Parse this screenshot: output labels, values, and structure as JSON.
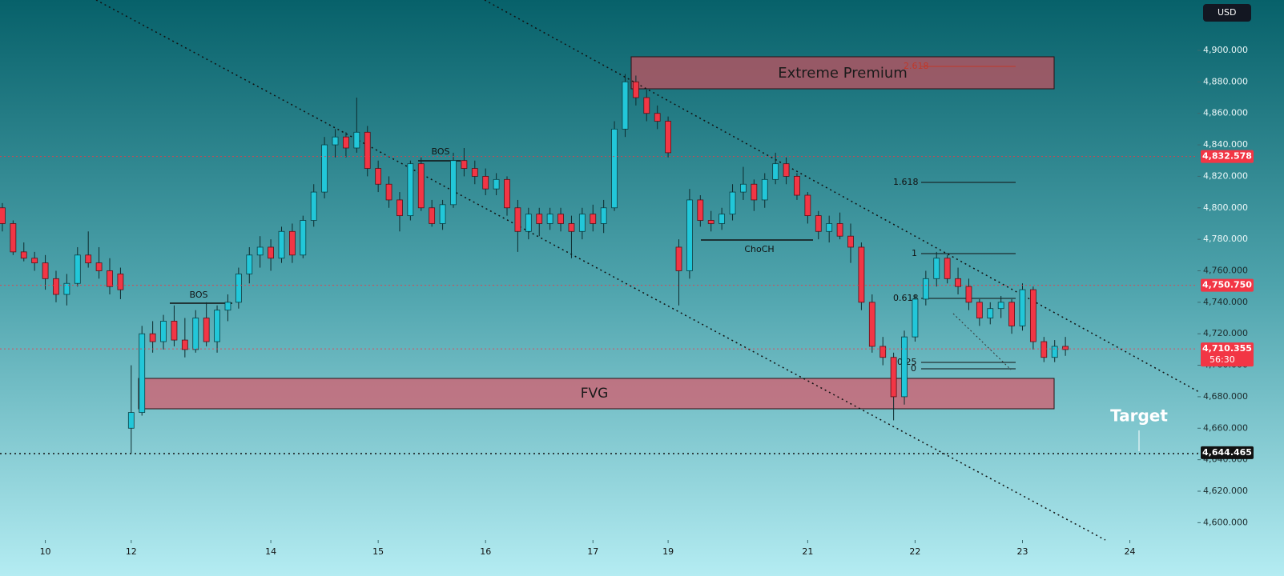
{
  "chart_data": {
    "type": "candlestick",
    "currency": "USD",
    "up_color": "#22c7d9",
    "down_color": "#f23645",
    "candles": [
      [
        4800,
        4803,
        4785,
        4790
      ],
      [
        4790,
        4792,
        4770,
        4772
      ],
      [
        4772,
        4778,
        4766,
        4768
      ],
      [
        4768,
        4772,
        4760,
        4765
      ],
      [
        4765,
        4770,
        4748,
        4755
      ],
      [
        4755,
        4760,
        4740,
        4745
      ],
      [
        4745,
        4758,
        4738,
        4752
      ],
      [
        4752,
        4775,
        4750,
        4770
      ],
      [
        4770,
        4785,
        4762,
        4765
      ],
      [
        4765,
        4775,
        4755,
        4760
      ],
      [
        4760,
        4768,
        4745,
        4750
      ],
      [
        4758,
        4762,
        4742,
        4748
      ],
      [
        4660,
        4700,
        4644,
        4670
      ],
      [
        4670,
        4725,
        4668,
        4720
      ],
      [
        4720,
        4728,
        4708,
        4715
      ],
      [
        4715,
        4732,
        4710,
        4728
      ],
      [
        4728,
        4738,
        4712,
        4716
      ],
      [
        4716,
        4730,
        4705,
        4710
      ],
      [
        4710,
        4735,
        4708,
        4730
      ],
      [
        4730,
        4740,
        4712,
        4715
      ],
      [
        4715,
        4738,
        4708,
        4735
      ],
      [
        4735,
        4745,
        4728,
        4740
      ],
      [
        4740,
        4762,
        4736,
        4758
      ],
      [
        4758,
        4775,
        4752,
        4770
      ],
      [
        4770,
        4782,
        4762,
        4775
      ],
      [
        4775,
        4780,
        4760,
        4768
      ],
      [
        4768,
        4788,
        4765,
        4785
      ],
      [
        4785,
        4790,
        4765,
        4770
      ],
      [
        4770,
        4795,
        4768,
        4792
      ],
      [
        4792,
        4815,
        4788,
        4810
      ],
      [
        4810,
        4845,
        4806,
        4840
      ],
      [
        4840,
        4850,
        4832,
        4845
      ],
      [
        4845,
        4848,
        4832,
        4838
      ],
      [
        4838,
        4870,
        4835,
        4848
      ],
      [
        4848,
        4852,
        4820,
        4825
      ],
      [
        4825,
        4830,
        4810,
        4815
      ],
      [
        4815,
        4820,
        4800,
        4805
      ],
      [
        4805,
        4810,
        4785,
        4795
      ],
      [
        4795,
        4830,
        4792,
        4828
      ],
      [
        4828,
        4832,
        4798,
        4800
      ],
      [
        4800,
        4805,
        4788,
        4790
      ],
      [
        4790,
        4805,
        4786,
        4802
      ],
      [
        4802,
        4835,
        4800,
        4830
      ],
      [
        4830,
        4838,
        4820,
        4825
      ],
      [
        4825,
        4830,
        4815,
        4820
      ],
      [
        4820,
        4825,
        4808,
        4812
      ],
      [
        4812,
        4822,
        4808,
        4818
      ],
      [
        4818,
        4820,
        4795,
        4800
      ],
      [
        4800,
        4805,
        4772,
        4785
      ],
      [
        4785,
        4800,
        4780,
        4796
      ],
      [
        4796,
        4800,
        4782,
        4790
      ],
      [
        4790,
        4800,
        4786,
        4796
      ],
      [
        4796,
        4800,
        4785,
        4790
      ],
      [
        4790,
        4795,
        4768,
        4785
      ],
      [
        4785,
        4800,
        4780,
        4796
      ],
      [
        4796,
        4802,
        4785,
        4790
      ],
      [
        4790,
        4805,
        4784,
        4800
      ],
      [
        4800,
        4855,
        4798,
        4850
      ],
      [
        4850,
        4885,
        4845,
        4880
      ],
      [
        4880,
        4884,
        4865,
        4870
      ],
      [
        4870,
        4875,
        4855,
        4860
      ],
      [
        4860,
        4865,
        4850,
        4855
      ],
      [
        4855,
        4858,
        4832,
        4835
      ],
      [
        4775,
        4780,
        4738,
        4760
      ],
      [
        4760,
        4812,
        4755,
        4805
      ],
      [
        4805,
        4808,
        4788,
        4792
      ],
      [
        4792,
        4798,
        4785,
        4790
      ],
      [
        4790,
        4800,
        4786,
        4796
      ],
      [
        4796,
        4815,
        4792,
        4810
      ],
      [
        4810,
        4826,
        4805,
        4815
      ],
      [
        4815,
        4818,
        4798,
        4805
      ],
      [
        4805,
        4822,
        4800,
        4818
      ],
      [
        4818,
        4835,
        4815,
        4828
      ],
      [
        4828,
        4832,
        4815,
        4820
      ],
      [
        4820,
        4822,
        4805,
        4808
      ],
      [
        4808,
        4810,
        4790,
        4795
      ],
      [
        4795,
        4798,
        4780,
        4785
      ],
      [
        4785,
        4795,
        4778,
        4790
      ],
      [
        4790,
        4797,
        4780,
        4782
      ],
      [
        4782,
        4790,
        4765,
        4775
      ],
      [
        4775,
        4778,
        4735,
        4740
      ],
      [
        4740,
        4745,
        4708,
        4712
      ],
      [
        4712,
        4718,
        4700,
        4705
      ],
      [
        4705,
        4708,
        4665,
        4680
      ],
      [
        4680,
        4722,
        4675,
        4718
      ],
      [
        4718,
        4745,
        4715,
        4742
      ],
      [
        4742,
        4760,
        4738,
        4755
      ],
      [
        4755,
        4772,
        4750,
        4768
      ],
      [
        4768,
        4770,
        4752,
        4755
      ],
      [
        4755,
        4762,
        4745,
        4750
      ],
      [
        4750,
        4755,
        4735,
        4740
      ],
      [
        4740,
        4742,
        4725,
        4730
      ],
      [
        4730,
        4740,
        4726,
        4736
      ],
      [
        4736,
        4744,
        4730,
        4740
      ],
      [
        4740,
        4742,
        4720,
        4725
      ],
      [
        4725,
        4752,
        4722,
        4748
      ],
      [
        4748,
        4750,
        4710,
        4715
      ],
      [
        4715,
        4718,
        4702,
        4705
      ],
      [
        4705,
        4716,
        4702,
        4712
      ],
      [
        4712,
        4718,
        4706,
        4710
      ]
    ],
    "xlim": [
      -0.22,
      111.3
    ],
    "xticks": [
      {
        "value": 4,
        "label": "10"
      },
      {
        "value": 12,
        "label": "12"
      },
      {
        "value": 25,
        "label": "14"
      },
      {
        "value": 35,
        "label": "15"
      },
      {
        "value": 45,
        "label": "16"
      },
      {
        "value": 55,
        "label": "17"
      },
      {
        "value": 62,
        "label": "19"
      },
      {
        "value": 75,
        "label": "21"
      },
      {
        "value": 85,
        "label": "22"
      },
      {
        "value": 95,
        "label": "23"
      },
      {
        "value": 105,
        "label": "24"
      }
    ],
    "ylim": [
      4589,
      4932
    ],
    "yticks": [
      {
        "value": 4600,
        "label": "4,600.000"
      },
      {
        "value": 4620,
        "label": "4,620.000"
      },
      {
        "value": 4640,
        "label": "4,640.000"
      },
      {
        "value": 4660,
        "label": "4,660.000"
      },
      {
        "value": 4680,
        "label": "4,680.000"
      },
      {
        "value": 4700,
        "label": "4,700.000"
      },
      {
        "value": 4720,
        "label": "4,720.000"
      },
      {
        "value": 4740,
        "label": "4,740.000"
      },
      {
        "value": 4760,
        "label": "4,760.000"
      },
      {
        "value": 4780,
        "label": "4,780.000"
      },
      {
        "value": 4800,
        "label": "4,800.000"
      },
      {
        "value": 4820,
        "label": "4,820.000"
      },
      {
        "value": 4840,
        "label": "4,840.000"
      },
      {
        "value": 4860,
        "label": "4,860.000"
      },
      {
        "value": 4880,
        "label": "4,880.000"
      },
      {
        "value": 4900,
        "label": "4,900.000"
      }
    ],
    "price_lines": [
      {
        "value": 4832.578,
        "label": "4,832.578",
        "color": "#f23645"
      },
      {
        "value": 4750.75,
        "label": "4,750.750",
        "color": "#f23645"
      },
      {
        "value": 4710.355,
        "label": "4,710.355",
        "color": "#f23645",
        "timer": "56:30"
      },
      {
        "value": 4644.465,
        "label": "4,644.465",
        "color": "#111111"
      }
    ],
    "zones": [
      "Extreme Premium",
      "FVG"
    ],
    "fib_levels": [
      "2.618",
      "1.618",
      "1",
      "0.618",
      "0.25",
      "0"
    ],
    "structure_labels": [
      "BOS",
      "BOS",
      "ChoCH"
    ],
    "target_label": "Target"
  }
}
